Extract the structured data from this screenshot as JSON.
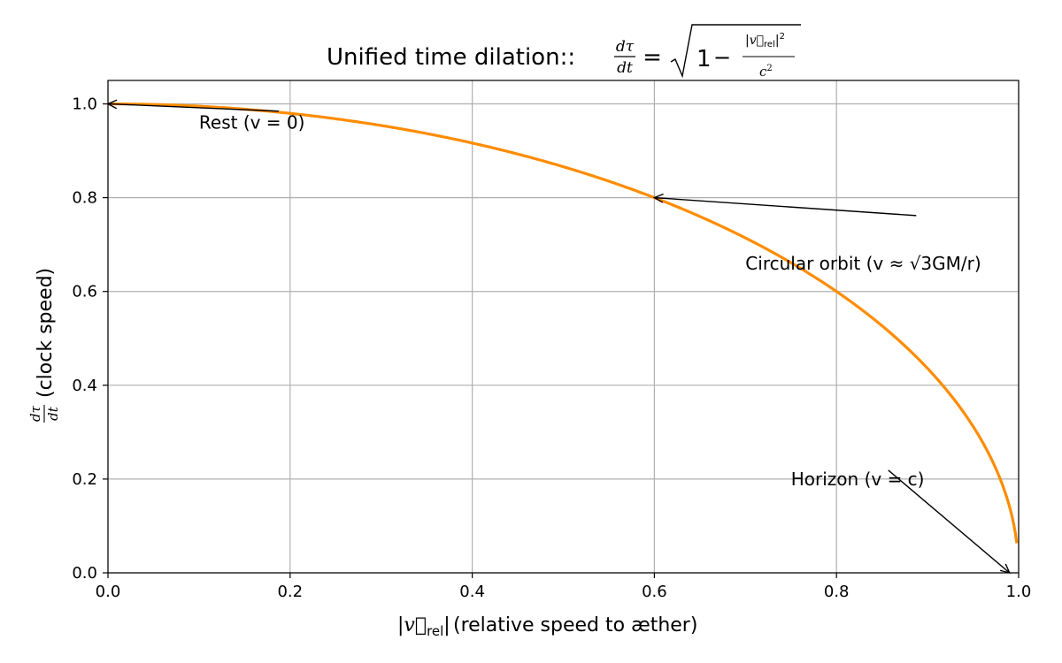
{
  "chart_data": {
    "type": "line",
    "title": "Unified time dilation::",
    "title_formula": "dτ/dt = √(1 − |v⃗rel|²/c²)",
    "xlabel": "(relative speed to æther)",
    "xlabel_symbol": "|v⃗rel|",
    "ylabel": "(clock speed)",
    "ylabel_symbol": "dτ/dt",
    "xlim": [
      0.0,
      1.0
    ],
    "ylim": [
      0.0,
      1.05
    ],
    "xticks": [
      "0.0",
      "0.2",
      "0.4",
      "0.6",
      "0.8",
      "1.0"
    ],
    "yticks": [
      "0.0",
      "0.2",
      "0.4",
      "0.6",
      "0.8",
      "1.0"
    ],
    "grid": true,
    "series": [
      {
        "color": "#ff8c00",
        "function": "sqrt(1 - v^2)",
        "x_range": [
          0.0,
          0.998
        ],
        "x": [
          0.0,
          0.1,
          0.2,
          0.3,
          0.4,
          0.5,
          0.6,
          0.7,
          0.8,
          0.9,
          0.95,
          0.99,
          0.998
        ],
        "y": [
          1.0,
          0.995,
          0.98,
          0.954,
          0.917,
          0.866,
          0.8,
          0.714,
          0.6,
          0.436,
          0.312,
          0.141,
          0.063
        ]
      }
    ],
    "annotations": [
      {
        "text": "Rest (v = 0)",
        "point": [
          0.0,
          1.0
        ],
        "text_at": [
          0.1,
          0.96
        ]
      },
      {
        "text": "Circular orbit (v ≈ √3GM/r)",
        "point": [
          0.6,
          0.8
        ],
        "text_at": [
          0.7,
          0.66
        ]
      },
      {
        "text": "Horizon (v = c)",
        "point": [
          0.99,
          0.0
        ],
        "text_at": [
          0.75,
          0.2
        ]
      }
    ]
  }
}
